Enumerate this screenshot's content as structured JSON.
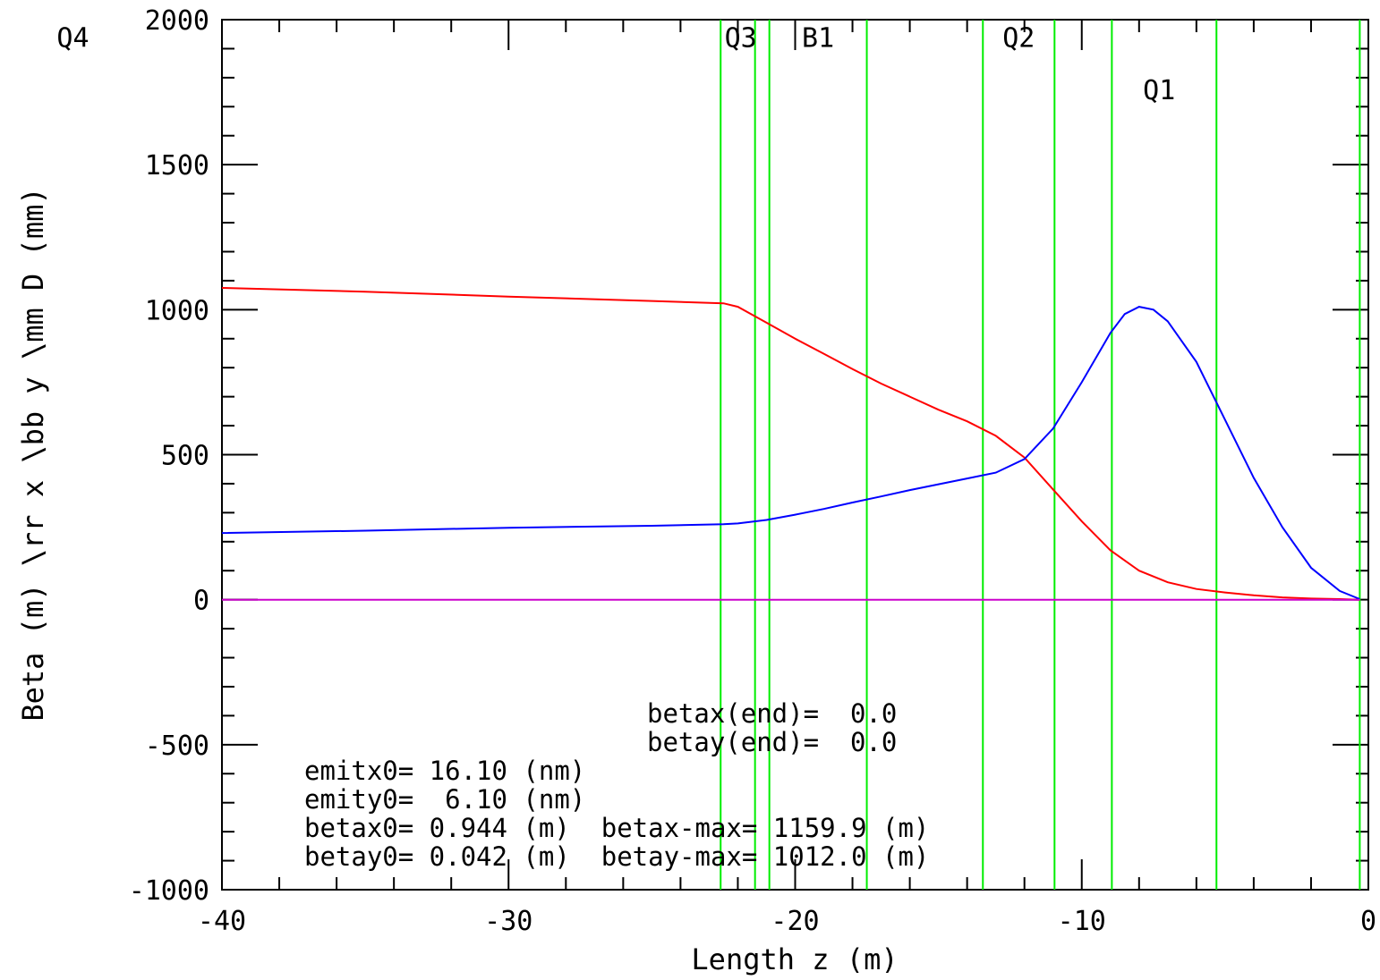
{
  "chart_data": {
    "type": "line",
    "xlabel": "Length z  (m)",
    "ylabel": "Beta (m)  \\rr x \\bb y  \\mm D (mm)",
    "xlim": [
      -40,
      0
    ],
    "ylim": [
      -1000,
      2000
    ],
    "x_ticks": [
      -40,
      -30,
      -20,
      -10,
      0
    ],
    "x_tick_labels": [
      "-40",
      "-30",
      "-20",
      "-10",
      "0"
    ],
    "y_ticks": [
      -1000,
      -500,
      0,
      500,
      1000,
      1500,
      2000
    ],
    "y_tick_labels": [
      "-1000",
      "-500",
      "0",
      "500",
      "1000",
      "1500",
      "2000"
    ],
    "grid": false,
    "colors": {
      "beta_x": "#ff0000",
      "beta_y": "#0000ff",
      "dispersion": "#cc00cc",
      "element_lines": "#00ee00",
      "frame": "#000000"
    },
    "series": [
      {
        "key": "beta_x",
        "color": "#ff0000",
        "x": [
          -40,
          -35,
          -30,
          -25,
          -22.5,
          -22,
          -21,
          -20,
          -19,
          -18,
          -17,
          -16,
          -15,
          -14,
          -13,
          -12,
          -11,
          -10,
          -9,
          -8,
          -7,
          -6,
          -5,
          -4,
          -3,
          -2,
          -1,
          -0.3
        ],
        "y": [
          1075,
          1062,
          1045,
          1030,
          1022,
          1010,
          955,
          900,
          848,
          795,
          745,
          700,
          655,
          615,
          565,
          490,
          380,
          270,
          170,
          100,
          60,
          37,
          25,
          15,
          8,
          4,
          2,
          0
        ]
      },
      {
        "key": "beta_y",
        "color": "#0000ff",
        "x": [
          -40,
          -35,
          -30,
          -25,
          -22.5,
          -22,
          -21,
          -20,
          -19,
          -18,
          -17,
          -16,
          -15,
          -14,
          -13,
          -12,
          -11,
          -10,
          -9,
          -8.5,
          -8,
          -7.5,
          -7,
          -6,
          -5,
          -4,
          -3,
          -2,
          -1,
          -0.3
        ],
        "y": [
          230,
          238,
          248,
          255,
          260,
          263,
          275,
          293,
          313,
          335,
          356,
          378,
          398,
          418,
          438,
          485,
          590,
          750,
          920,
          985,
          1010,
          1000,
          960,
          820,
          620,
          420,
          250,
          110,
          30,
          2
        ]
      },
      {
        "key": "dispersion",
        "color": "#cc00cc",
        "x": [
          -40,
          -0.3
        ],
        "y": [
          0,
          0
        ]
      }
    ],
    "element_lines_z": [
      -22.6,
      -21.4,
      -20.9,
      -17.5,
      -13.45,
      -10.95,
      -8.95,
      -5.3,
      -0.3
    ],
    "element_labels": [
      {
        "text": "Q4",
        "z": -45.2,
        "level": 1940
      },
      {
        "text": "Q3",
        "z": -21.9,
        "level": 1940
      },
      {
        "text": "B1",
        "z": -19.2,
        "level": 1940
      },
      {
        "text": "Q2",
        "z": -12.2,
        "level": 1940
      },
      {
        "text": "Q1",
        "z": -7.3,
        "level": 1760
      }
    ],
    "info_lines": [
      "betax(end)=  0.0",
      "betay(end)=  0.0",
      "emitx0= 16.10 (nm)",
      "emity0=  6.10 (nm)",
      "betax0= 0.944 (m)  betax-max= 1159.9 (m)",
      "betay0= 0.042 (m)  betay-max= 1012.0 (m)"
    ]
  }
}
